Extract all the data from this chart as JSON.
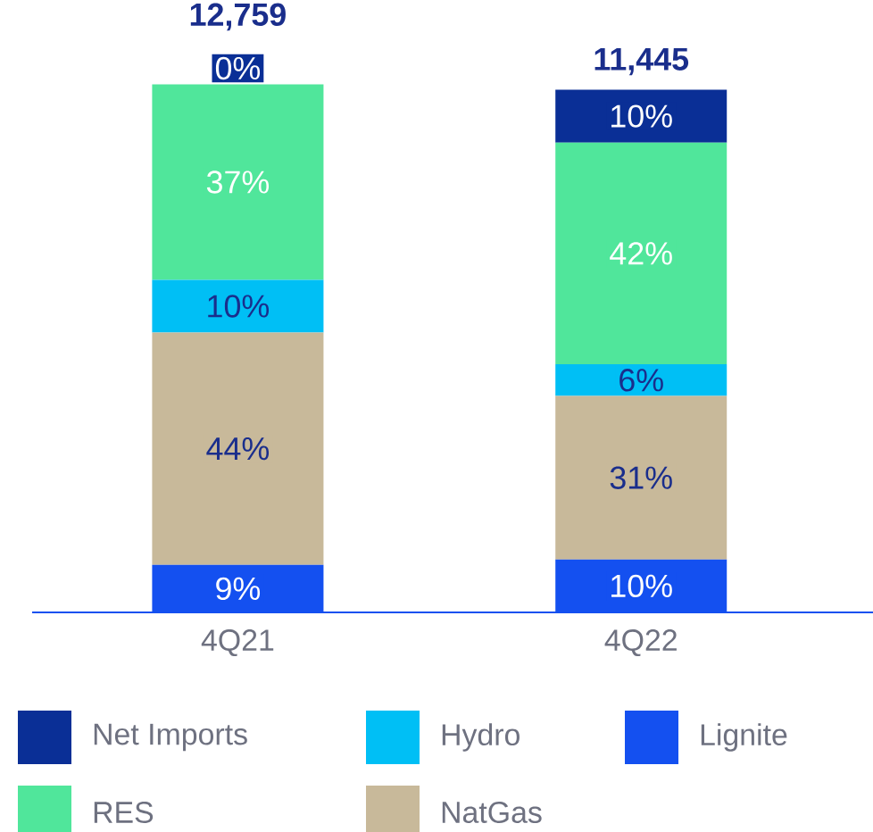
{
  "chart_data": {
    "type": "bar",
    "stacked": true,
    "legend": "bottom",
    "categories": [
      "4Q21",
      "4Q22"
    ],
    "series": [
      {
        "name": "Lignite",
        "color": "#1450f0",
        "values": [
          9,
          10
        ],
        "value_labels": [
          "9%",
          "10%"
        ]
      },
      {
        "name": "NatGas",
        "color": "#c8b99a",
        "values": [
          44,
          31
        ],
        "value_labels": [
          "44%",
          "31%"
        ]
      },
      {
        "name": "Hydro",
        "color": "#00bff5",
        "values": [
          10,
          6
        ],
        "value_labels": [
          "10%",
          "6%"
        ]
      },
      {
        "name": "RES",
        "color": "#50e69b",
        "values": [
          37,
          42
        ],
        "value_labels": [
          "37%",
          "42%"
        ]
      },
      {
        "name": "Net Imports",
        "color": "#0a2f96",
        "values": [
          0,
          10
        ],
        "value_labels": [
          "0%",
          "10%"
        ]
      }
    ],
    "annotations": [
      {
        "text": "12,759",
        "x": "4Q21",
        "y": 100
      },
      {
        "text": "11,445",
        "x": "4Q22",
        "y": 99
      }
    ]
  }
}
